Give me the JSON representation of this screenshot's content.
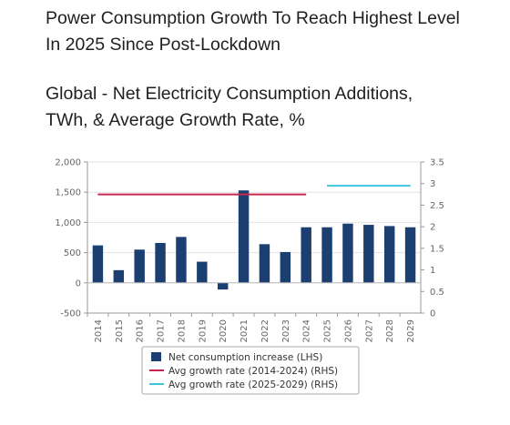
{
  "headline": {
    "line1": "Power Consumption Growth To Reach Highest Level",
    "line2": "In 2025 Since Post-Lockdown"
  },
  "subtitle": {
    "line1": "Global - Net Electricity Consumption Additions,",
    "line2": "TWh, & Average Growth Rate, %"
  },
  "chart_data": {
    "type": "bar",
    "categories": [
      "2014",
      "2015",
      "2016",
      "2017",
      "2018",
      "2019",
      "2020",
      "2021",
      "2022",
      "2023",
      "2024",
      "2025",
      "2026",
      "2027",
      "2028",
      "2029"
    ],
    "series": [
      {
        "name": "Net consumption increase (LHS)",
        "type": "bar",
        "axis": "left",
        "color": "#1c3f72",
        "values": [
          620,
          210,
          550,
          660,
          760,
          350,
          -110,
          1530,
          640,
          510,
          920,
          920,
          980,
          960,
          940,
          920
        ]
      },
      {
        "name": "Avg growth rate (2014-2024) (RHS)",
        "type": "line",
        "axis": "right",
        "color": "#c8264a",
        "from": "2014",
        "to": "2024",
        "value": 2.75
      },
      {
        "name": "Avg growth rate (2025-2029) (RHS)",
        "type": "line",
        "axis": "right",
        "color": "#3cc4e0",
        "from": "2025",
        "to": "2029",
        "value": 2.95
      }
    ],
    "y_left": {
      "min": -500,
      "max": 2000,
      "ticks": [
        -500,
        0,
        500,
        1000,
        1500,
        2000
      ],
      "tick_labels": [
        "-500",
        "0",
        "500",
        "1,000",
        "1,500",
        "2,000"
      ]
    },
    "y_right": {
      "min": 0,
      "max": 3.5,
      "ticks": [
        0,
        0.5,
        1,
        1.5,
        2,
        2.5,
        3,
        3.5
      ],
      "tick_labels": [
        "0",
        "0.5",
        "1",
        "1.5",
        "2",
        "2.5",
        "3",
        "3.5"
      ]
    },
    "grid": true,
    "legend_position": "bottom"
  }
}
